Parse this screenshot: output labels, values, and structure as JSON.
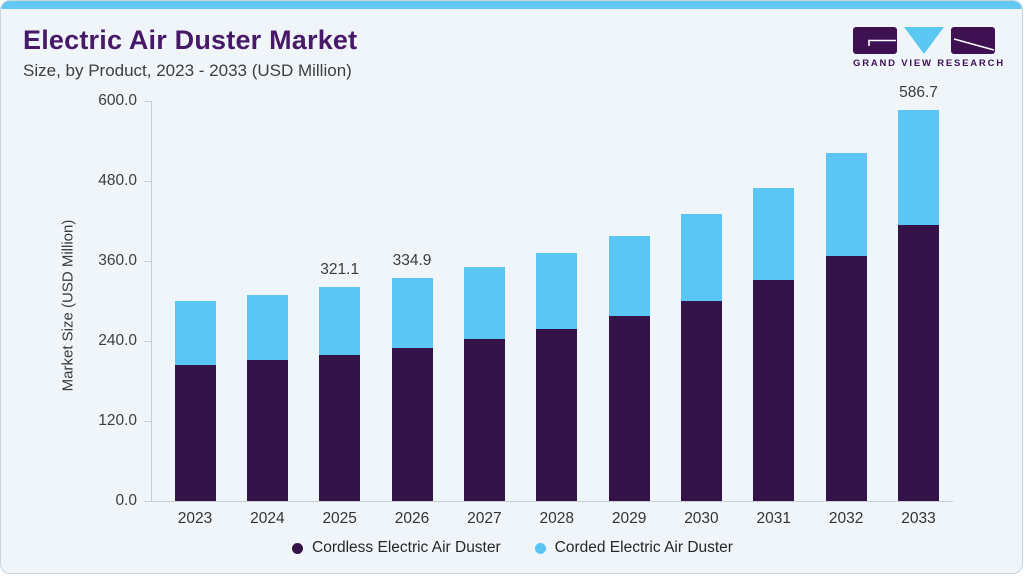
{
  "header": {
    "title": "Electric Air Duster Market",
    "subtitle": "Size, by Product, 2023 - 2033 (USD Million)"
  },
  "logo": {
    "text": "GRAND VIEW RESEARCH"
  },
  "chart_data": {
    "type": "bar",
    "stacked": true,
    "title": "Electric Air Duster Market Size, by Product, 2023 - 2033 (USD Million)",
    "categories": [
      "2023",
      "2024",
      "2025",
      "2026",
      "2027",
      "2028",
      "2029",
      "2030",
      "2031",
      "2032",
      "2033"
    ],
    "series": [
      {
        "name": "Cordless Electric Air Duster",
        "color": "#341349",
        "values": [
          204.6,
          211.2,
          219.5,
          229.4,
          242.3,
          257.8,
          277.0,
          300.3,
          330.9,
          368.1,
          414.7
        ]
      },
      {
        "name": "Corded Electric Air Duster",
        "color": "#5BC6F3",
        "values": [
          94.7,
          97.4,
          101.6,
          105.5,
          108.7,
          114.5,
          120.7,
          129.5,
          138.7,
          153.3,
          172.0
        ]
      }
    ],
    "totals": [
      299.3,
      308.6,
      321.1,
      334.9,
      351.0,
      372.3,
      397.7,
      429.8,
      469.6,
      521.4,
      586.7
    ],
    "value_labels": [
      {
        "category": "2025",
        "text": "321.1"
      },
      {
        "category": "2026",
        "text": "334.9"
      },
      {
        "category": "2033",
        "text": "586.7"
      }
    ],
    "xlabel": "",
    "ylabel": "Market Size (USD Million)",
    "ylim": [
      0,
      600
    ],
    "yticks": [
      "0.0",
      "120.0",
      "240.0",
      "360.0",
      "480.0",
      "600.0"
    ],
    "grid": false,
    "legend_position": "bottom"
  },
  "colors": {
    "accent_band": "#63C9F2",
    "title": "#491969",
    "logo_purple": "#3D1152",
    "logo_blue": "#5BC8F4",
    "background": "#F0F5F9",
    "axis": "#C8CED6"
  }
}
